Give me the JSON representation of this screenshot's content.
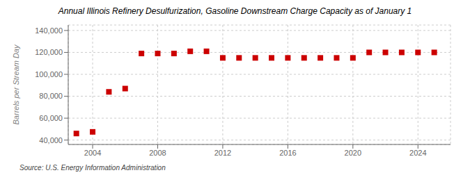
{
  "chart_data": {
    "type": "scatter",
    "title": "Annual Illinois Refinery Desulfurization, Gasoline Downstream Charge Capacity as of January 1",
    "y_label": "Barrels per Stream Day",
    "annotations": [
      "Source: U.S. Energy Information Administration"
    ],
    "x": [
      2003,
      2004,
      2005,
      2006,
      2007,
      2008,
      2009,
      2010,
      2011,
      2012,
      2013,
      2014,
      2015,
      2016,
      2017,
      2018,
      2019,
      2020,
      2021,
      2022,
      2023,
      2024,
      2025
    ],
    "values": [
      46000,
      47500,
      84000,
      87000,
      119000,
      119000,
      119000,
      121000,
      121000,
      115000,
      115000,
      115000,
      115000,
      115000,
      115000,
      115000,
      115000,
      115000,
      120000,
      120000,
      120000,
      120000,
      120000
    ],
    "color": "#cc0000",
    "marker": "square",
    "xlim": [
      2002.5,
      2026
    ],
    "xticks": [
      2004,
      2008,
      2012,
      2016,
      2020,
      2024
    ],
    "ylim": [
      36000,
      145000
    ],
    "yticks": [
      {
        "value": 40000,
        "label": "40,000"
      },
      {
        "value": 60000,
        "label": "60,000"
      },
      {
        "value": 80000,
        "label": "80,000"
      },
      {
        "value": 100000,
        "label": "100,000"
      },
      {
        "value": 120000,
        "label": "120,000"
      },
      {
        "value": 140000,
        "label": "140,000"
      }
    ],
    "grid": true
  }
}
